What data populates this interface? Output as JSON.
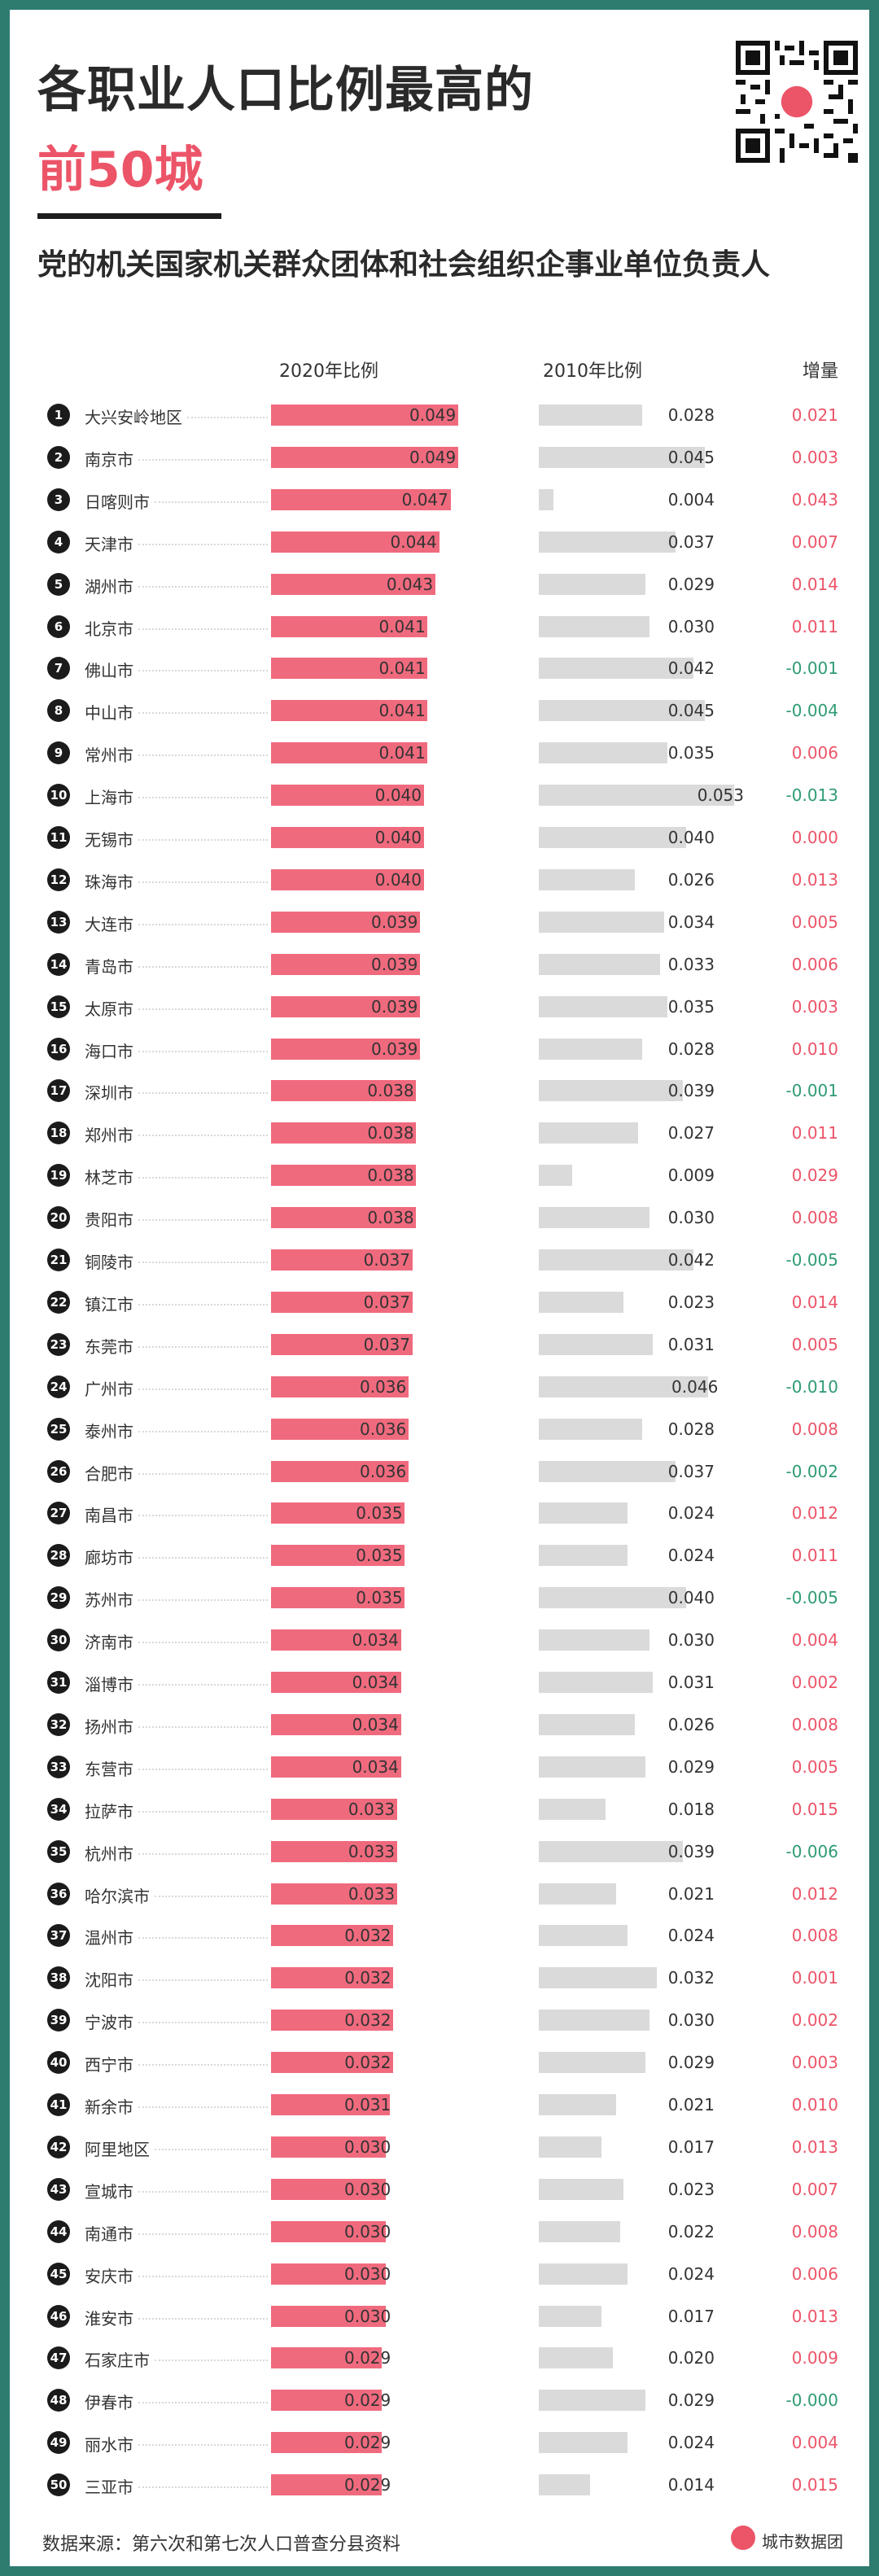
{
  "header": {
    "title_line1": "各职业人口比例最高的",
    "title_line2": "前50城",
    "subtitle": "党的机关国家机关群众团体和社会组织企事业单位负责人"
  },
  "columns": {
    "c2020": "2020年比例",
    "c2010": "2010年比例",
    "delta": "增量"
  },
  "footer": {
    "source": "数据来源：第六次和第七次人口普查分县资料",
    "brand": "城市数据团"
  },
  "colors": {
    "frame": "#2e7b70",
    "bar2020": "#f06a7e",
    "bar2010": "#dadada",
    "positive": "#ec5468",
    "negative": "#2e9b72"
  },
  "chart_data": {
    "type": "bar",
    "title": "各职业人口比例最高的前50城",
    "subtitle": "党的机关国家机关群众团体和社会组织企事业单位负责人",
    "series": [
      {
        "name": "2020年比例"
      },
      {
        "name": "2010年比例"
      },
      {
        "name": "增量"
      }
    ],
    "rows": [
      {
        "rank": "1",
        "city": "大兴安岭地区",
        "v2020": 0.049,
        "v2010": 0.028,
        "delta": "0.021"
      },
      {
        "rank": "2",
        "city": "南京市",
        "v2020": 0.049,
        "v2010": 0.045,
        "delta": "0.003"
      },
      {
        "rank": "3",
        "city": "日喀则市",
        "v2020": 0.047,
        "v2010": 0.004,
        "delta": "0.043"
      },
      {
        "rank": "4",
        "city": "天津市",
        "v2020": 0.044,
        "v2010": 0.037,
        "delta": "0.007"
      },
      {
        "rank": "5",
        "city": "湖州市",
        "v2020": 0.043,
        "v2010": 0.029,
        "delta": "0.014"
      },
      {
        "rank": "6",
        "city": "北京市",
        "v2020": 0.041,
        "v2010": 0.03,
        "delta": "0.011"
      },
      {
        "rank": "7",
        "city": "佛山市",
        "v2020": 0.041,
        "v2010": 0.042,
        "delta": "-0.001"
      },
      {
        "rank": "8",
        "city": "中山市",
        "v2020": 0.041,
        "v2010": 0.045,
        "delta": "-0.004"
      },
      {
        "rank": "9",
        "city": "常州市",
        "v2020": 0.041,
        "v2010": 0.035,
        "delta": "0.006"
      },
      {
        "rank": "10",
        "city": "上海市",
        "v2020": 0.04,
        "v2010": 0.053,
        "delta": "-0.013"
      },
      {
        "rank": "11",
        "city": "无锡市",
        "v2020": 0.04,
        "v2010": 0.04,
        "delta": "0.000"
      },
      {
        "rank": "12",
        "city": "珠海市",
        "v2020": 0.04,
        "v2010": 0.026,
        "delta": "0.013"
      },
      {
        "rank": "13",
        "city": "大连市",
        "v2020": 0.039,
        "v2010": 0.034,
        "delta": "0.005"
      },
      {
        "rank": "14",
        "city": "青岛市",
        "v2020": 0.039,
        "v2010": 0.033,
        "delta": "0.006"
      },
      {
        "rank": "15",
        "city": "太原市",
        "v2020": 0.039,
        "v2010": 0.035,
        "delta": "0.003"
      },
      {
        "rank": "16",
        "city": "海口市",
        "v2020": 0.039,
        "v2010": 0.028,
        "delta": "0.010"
      },
      {
        "rank": "17",
        "city": "深圳市",
        "v2020": 0.038,
        "v2010": 0.039,
        "delta": "-0.001"
      },
      {
        "rank": "18",
        "city": "郑州市",
        "v2020": 0.038,
        "v2010": 0.027,
        "delta": "0.011"
      },
      {
        "rank": "19",
        "city": "林芝市",
        "v2020": 0.038,
        "v2010": 0.009,
        "delta": "0.029"
      },
      {
        "rank": "20",
        "city": "贵阳市",
        "v2020": 0.038,
        "v2010": 0.03,
        "delta": "0.008"
      },
      {
        "rank": "21",
        "city": "铜陵市",
        "v2020": 0.037,
        "v2010": 0.042,
        "delta": "-0.005"
      },
      {
        "rank": "22",
        "city": "镇江市",
        "v2020": 0.037,
        "v2010": 0.023,
        "delta": "0.014"
      },
      {
        "rank": "23",
        "city": "东莞市",
        "v2020": 0.037,
        "v2010": 0.031,
        "delta": "0.005"
      },
      {
        "rank": "24",
        "city": "广州市",
        "v2020": 0.036,
        "v2010": 0.046,
        "delta": "-0.010"
      },
      {
        "rank": "25",
        "city": "泰州市",
        "v2020": 0.036,
        "v2010": 0.028,
        "delta": "0.008"
      },
      {
        "rank": "26",
        "city": "合肥市",
        "v2020": 0.036,
        "v2010": 0.037,
        "delta": "-0.002"
      },
      {
        "rank": "27",
        "city": "南昌市",
        "v2020": 0.035,
        "v2010": 0.024,
        "delta": "0.012"
      },
      {
        "rank": "28",
        "city": "廊坊市",
        "v2020": 0.035,
        "v2010": 0.024,
        "delta": "0.011"
      },
      {
        "rank": "29",
        "city": "苏州市",
        "v2020": 0.035,
        "v2010": 0.04,
        "delta": "-0.005"
      },
      {
        "rank": "30",
        "city": "济南市",
        "v2020": 0.034,
        "v2010": 0.03,
        "delta": "0.004"
      },
      {
        "rank": "31",
        "city": "淄博市",
        "v2020": 0.034,
        "v2010": 0.031,
        "delta": "0.002"
      },
      {
        "rank": "32",
        "city": "扬州市",
        "v2020": 0.034,
        "v2010": 0.026,
        "delta": "0.008"
      },
      {
        "rank": "33",
        "city": "东营市",
        "v2020": 0.034,
        "v2010": 0.029,
        "delta": "0.005"
      },
      {
        "rank": "34",
        "city": "拉萨市",
        "v2020": 0.033,
        "v2010": 0.018,
        "delta": "0.015"
      },
      {
        "rank": "35",
        "city": "杭州市",
        "v2020": 0.033,
        "v2010": 0.039,
        "delta": "-0.006"
      },
      {
        "rank": "36",
        "city": "哈尔滨市",
        "v2020": 0.033,
        "v2010": 0.021,
        "delta": "0.012"
      },
      {
        "rank": "37",
        "city": "温州市",
        "v2020": 0.032,
        "v2010": 0.024,
        "delta": "0.008"
      },
      {
        "rank": "38",
        "city": "沈阳市",
        "v2020": 0.032,
        "v2010": 0.032,
        "delta": "0.001"
      },
      {
        "rank": "39",
        "city": "宁波市",
        "v2020": 0.032,
        "v2010": 0.03,
        "delta": "0.002"
      },
      {
        "rank": "40",
        "city": "西宁市",
        "v2020": 0.032,
        "v2010": 0.029,
        "delta": "0.003"
      },
      {
        "rank": "41",
        "city": "新余市",
        "v2020": 0.031,
        "v2010": 0.021,
        "delta": "0.010"
      },
      {
        "rank": "42",
        "city": "阿里地区",
        "v2020": 0.03,
        "v2010": 0.017,
        "delta": "0.013"
      },
      {
        "rank": "43",
        "city": "宣城市",
        "v2020": 0.03,
        "v2010": 0.023,
        "delta": "0.007"
      },
      {
        "rank": "44",
        "city": "南通市",
        "v2020": 0.03,
        "v2010": 0.022,
        "delta": "0.008"
      },
      {
        "rank": "45",
        "city": "安庆市",
        "v2020": 0.03,
        "v2010": 0.024,
        "delta": "0.006"
      },
      {
        "rank": "46",
        "city": "淮安市",
        "v2020": 0.03,
        "v2010": 0.017,
        "delta": "0.013"
      },
      {
        "rank": "47",
        "city": "石家庄市",
        "v2020": 0.029,
        "v2010": 0.02,
        "delta": "0.009"
      },
      {
        "rank": "48",
        "city": "伊春市",
        "v2020": 0.029,
        "v2010": 0.029,
        "delta": "-0.000"
      },
      {
        "rank": "49",
        "city": "丽水市",
        "v2020": 0.029,
        "v2010": 0.024,
        "delta": "0.004"
      },
      {
        "rank": "50",
        "city": "三亚市",
        "v2020": 0.029,
        "v2010": 0.014,
        "delta": "0.015"
      }
    ]
  }
}
